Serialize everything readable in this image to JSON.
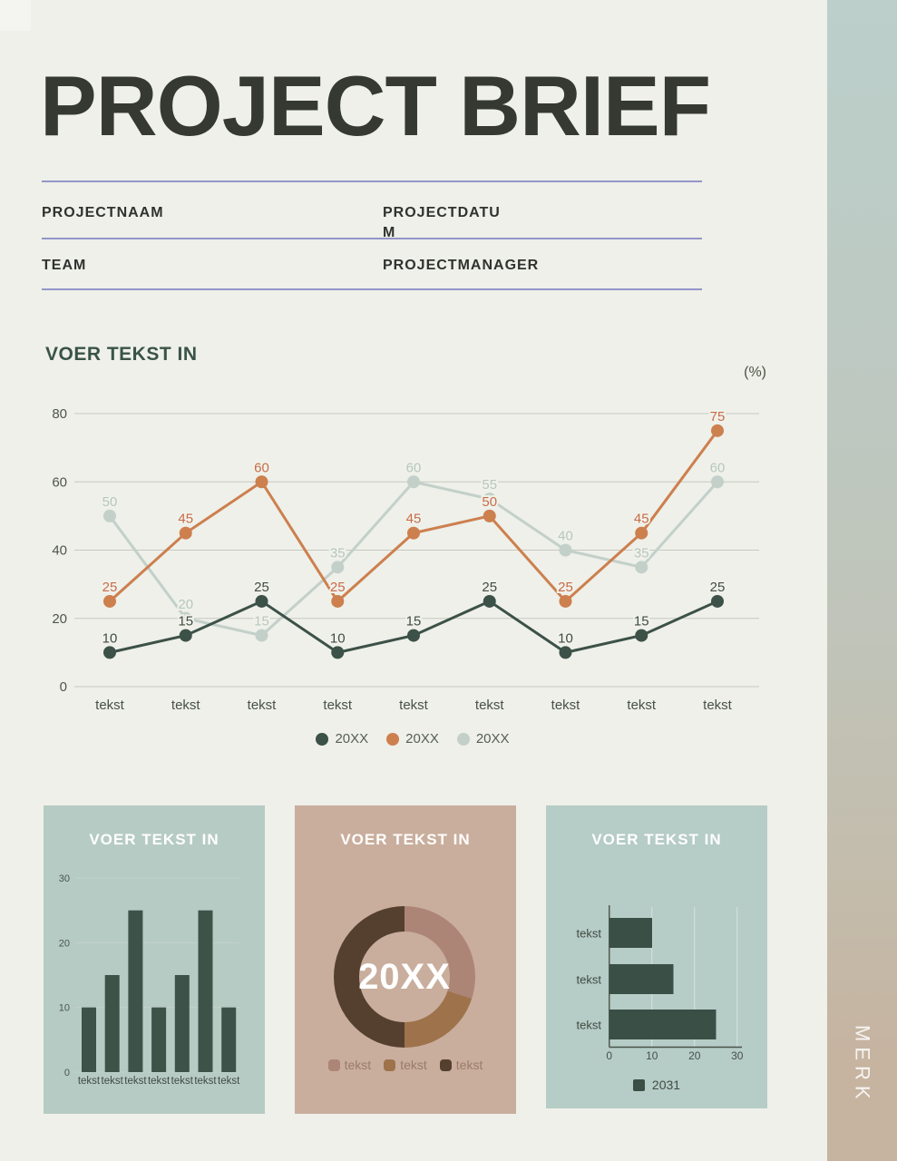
{
  "header": {
    "title": "PROJECT BRIEF"
  },
  "sidebar": {
    "brand": "MERK"
  },
  "fields": {
    "rows": [
      {
        "left": "PROJECTNAAM",
        "right": "PROJECTDATUM"
      },
      {
        "left": "TEAM",
        "right": "PROJECTMANAGER"
      }
    ]
  },
  "colors": {
    "page_bg": "#eef0e9",
    "rule": "#9595c9",
    "title_text": "#363932",
    "section_title": "#3a5348",
    "gridline": "#c7c9c1",
    "card_bar_bg": "#b6cbc4",
    "card_donut_bg": "#c9ae9d",
    "card_hbar_bg": "#b6ccc6",
    "sidebar_top": "#bccfcb",
    "sidebar_bottom": "#c6b3a0"
  },
  "chart_data": [
    {
      "type": "line",
      "title": "VOER TEKST IN",
      "unit_label": "(%)",
      "categories": [
        "tekst",
        "tekst",
        "tekst",
        "tekst",
        "tekst",
        "tekst",
        "tekst",
        "tekst",
        "tekst"
      ],
      "series": [
        {
          "name": "20XX",
          "color": "#3c5148",
          "label_color": "#414b43",
          "values": [
            10,
            15,
            25,
            10,
            15,
            25,
            10,
            15,
            25
          ]
        },
        {
          "name": "20XX",
          "color": "#cd7f4e",
          "label_color": "#c96a4a",
          "values": [
            25,
            45,
            60,
            25,
            45,
            50,
            25,
            45,
            75
          ]
        },
        {
          "name": "20XX",
          "color": "#c3d0ca",
          "label_color": "#b6c6bf",
          "values": [
            50,
            20,
            15,
            35,
            60,
            55,
            40,
            35,
            60
          ]
        }
      ],
      "ylim": [
        0,
        80
      ],
      "yticks": [
        0,
        20,
        40,
        60,
        80
      ],
      "grid": true,
      "legend_position": "bottom"
    },
    {
      "type": "bar",
      "title": "VOER TEKST IN",
      "categories": [
        "tekst",
        "tekst",
        "tekst",
        "tekst",
        "tekst",
        "tekst",
        "tekst"
      ],
      "values": [
        10,
        15,
        25,
        10,
        15,
        25,
        10
      ],
      "ylim": [
        0,
        30
      ],
      "yticks": [
        0,
        10,
        20,
        30
      ],
      "bar_color": "#3d5349",
      "grid": true
    },
    {
      "type": "pie",
      "title": "VOER TEKST IN",
      "center_label": "20XX",
      "slices": [
        {
          "label": "tekst",
          "value": 30,
          "color": "#ad8577"
        },
        {
          "label": "tekst",
          "value": 20,
          "color": "#9e734b"
        },
        {
          "label": "tekst",
          "value": 50,
          "color": "#55402f"
        }
      ],
      "legend_position": "bottom"
    },
    {
      "type": "bar",
      "orientation": "horizontal",
      "title": "VOER TEKST IN",
      "categories": [
        "tekst",
        "tekst",
        "tekst"
      ],
      "values": [
        10,
        15,
        25
      ],
      "xlim": [
        0,
        30
      ],
      "xticks": [
        0,
        10,
        20,
        30
      ],
      "bar_color": "#3a4f46",
      "legend": [
        {
          "label": "2031",
          "color": "#3a4f46"
        }
      ],
      "grid": true
    }
  ]
}
